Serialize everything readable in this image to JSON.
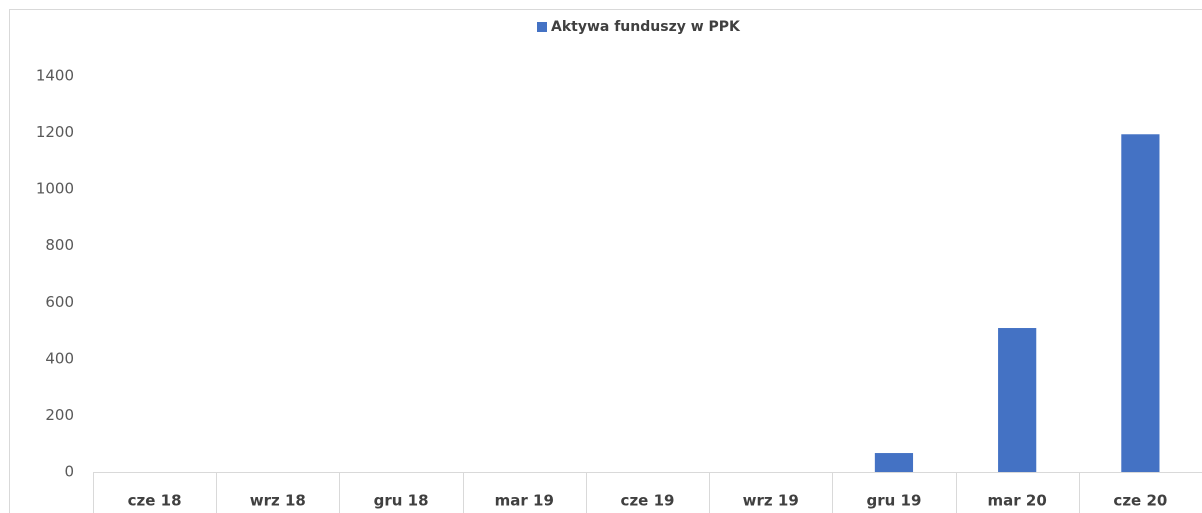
{
  "chart_data": {
    "type": "bar",
    "categories": [
      "cze 18",
      "wrz 18",
      "gru 18",
      "mar 19",
      "cze 19",
      "wrz 19",
      "gru 19",
      "mar 20",
      "cze 20"
    ],
    "series": [
      {
        "name": "Aktywa funduszy w PPK",
        "color": "#4472c4",
        "values": [
          0,
          0,
          0,
          0,
          0,
          0,
          67,
          509,
          1194
        ]
      }
    ],
    "ylim": [
      0,
      1400
    ],
    "yticks": [
      0,
      200,
      400,
      600,
      800,
      1000,
      1200,
      1400
    ],
    "grid": false,
    "legend": "top"
  }
}
